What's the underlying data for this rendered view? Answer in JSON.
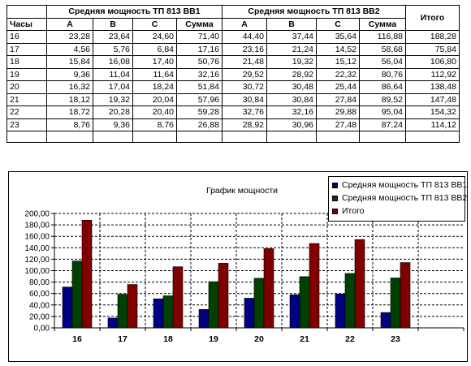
{
  "table": {
    "col_hours": "Часы",
    "group1": "Средняя мощность ТП 813 ВВ1",
    "group2": "Средняя мощность ТП 813 ВВ2",
    "col_total": "Итого",
    "sub_a": "A",
    "sub_b": "B",
    "sub_c": "C",
    "sub_sum": "Сумма",
    "rows": [
      [
        "16",
        "23,28",
        "23,64",
        "24,60",
        "71,40",
        "44,40",
        "37,44",
        "35,64",
        "116,88",
        "188,28"
      ],
      [
        "17",
        "4,56",
        "5,76",
        "6,84",
        "17,16",
        "23,16",
        "21,24",
        "14,52",
        "58,68",
        "75,84"
      ],
      [
        "18",
        "15,84",
        "16,08",
        "17,40",
        "50,76",
        "21,48",
        "19,32",
        "15,12",
        "56,04",
        "106,80"
      ],
      [
        "19",
        "9,36",
        "11,04",
        "11,64",
        "32,16",
        "29,52",
        "28,92",
        "22,32",
        "80,76",
        "112,92"
      ],
      [
        "20",
        "16,32",
        "17,04",
        "18,24",
        "51,84",
        "30,72",
        "30,48",
        "25,44",
        "86,64",
        "138,48"
      ],
      [
        "21",
        "18,12",
        "19,32",
        "20,04",
        "57,96",
        "30,84",
        "30,84",
        "27,84",
        "89,52",
        "147,48"
      ],
      [
        "22",
        "18,72",
        "20,28",
        "20,40",
        "59,28",
        "32,76",
        "32,16",
        "29,88",
        "95,04",
        "154,32"
      ],
      [
        "23",
        "8,76",
        "9,36",
        "8,76",
        "26,88",
        "28,92",
        "30,96",
        "27,48",
        "87,24",
        "114,12"
      ]
    ]
  },
  "chart_data": {
    "type": "bar",
    "title": "График мощности",
    "categories": [
      "16",
      "17",
      "18",
      "19",
      "20",
      "21",
      "22",
      "23"
    ],
    "series": [
      {
        "name": "Средняя мощность ТП 813 ВВ1",
        "color": "#000080",
        "values": [
          71.4,
          17.16,
          50.76,
          32.16,
          51.84,
          57.96,
          59.28,
          26.88
        ]
      },
      {
        "name": "Средняя мощность ТП 813 ВВ2",
        "color": "#004000",
        "values": [
          116.88,
          58.68,
          56.04,
          80.76,
          86.64,
          89.52,
          95.04,
          87.24
        ]
      },
      {
        "name": "Итого",
        "color": "#800000",
        "values": [
          188.28,
          75.84,
          106.8,
          112.92,
          138.48,
          147.48,
          154.32,
          114.12
        ]
      }
    ],
    "ylim": [
      0,
      200
    ],
    "ytick_step": 20,
    "ytick_labels": [
      "0,00",
      "20,00",
      "40,00",
      "60,00",
      "80,00",
      "100,00",
      "120,00",
      "140,00",
      "160,00",
      "180,00",
      "200,00"
    ],
    "extra_empty_category": true,
    "grid": "dashed",
    "legend_position": "top-right"
  }
}
